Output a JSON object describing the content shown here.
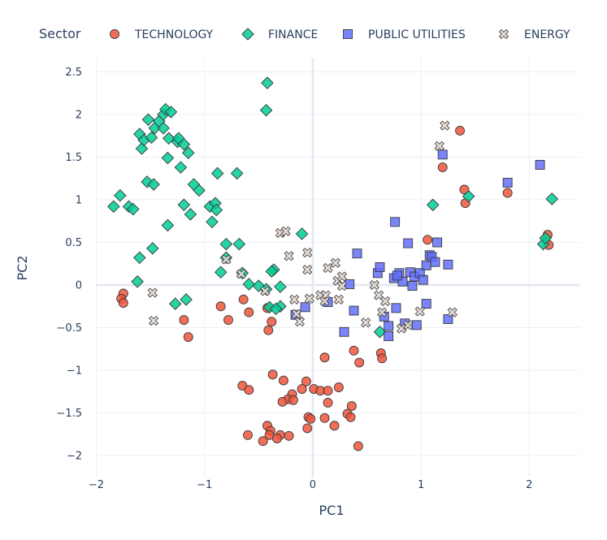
{
  "chart_data": {
    "type": "scatter",
    "title": "",
    "xlabel": "PC1",
    "ylabel": "PC2",
    "xlim": [
      -2.1,
      2.5
    ],
    "ylim": [
      -2.2,
      2.65
    ],
    "xticks": [
      -2,
      -1,
      0,
      1,
      2
    ],
    "xtick_labels": [
      "−2",
      "−1",
      "0",
      "1",
      "2"
    ],
    "yticks": [
      -2,
      -1.5,
      -1,
      -0.5,
      0,
      0.5,
      1,
      1.5,
      2,
      2.5
    ],
    "ytick_labels": [
      "−2",
      "−1.5",
      "−1",
      "−0.5",
      "0",
      "0.5",
      "1",
      "1.5",
      "2",
      "2.5"
    ],
    "grid": true,
    "legend_title": "Sector",
    "legend_position": "top",
    "series": [
      {
        "name": "TECHNOLOGY",
        "color": "#EF553B",
        "symbol": "circle",
        "points": [
          [
            -1.75,
            -0.1
          ],
          [
            -1.77,
            -0.16
          ],
          [
            -1.75,
            -0.21
          ],
          [
            -1.19,
            -0.41
          ],
          [
            -1.15,
            -0.61
          ],
          [
            -0.85,
            -0.25
          ],
          [
            -0.78,
            -0.41
          ],
          [
            -0.64,
            -0.17
          ],
          [
            -0.59,
            -0.32
          ],
          [
            -0.42,
            -0.27
          ],
          [
            -0.41,
            -0.53
          ],
          [
            -0.38,
            -0.43
          ],
          [
            -0.65,
            -1.18
          ],
          [
            -0.59,
            -1.23
          ],
          [
            -0.37,
            -1.05
          ],
          [
            -0.27,
            -1.12
          ],
          [
            -0.06,
            -1.13
          ],
          [
            -0.1,
            -1.22
          ],
          [
            -0.19,
            -1.28
          ],
          [
            -0.23,
            -1.34
          ],
          [
            -0.28,
            -1.37
          ],
          [
            -0.18,
            -1.35
          ],
          [
            0.01,
            -1.22
          ],
          [
            0.07,
            -1.24
          ],
          [
            0.14,
            -1.24
          ],
          [
            0.24,
            -1.2
          ],
          [
            0.14,
            -1.38
          ],
          [
            0.36,
            -1.42
          ],
          [
            0.32,
            -1.51
          ],
          [
            0.35,
            -1.55
          ],
          [
            -0.04,
            -1.55
          ],
          [
            -0.02,
            -1.57
          ],
          [
            0.11,
            -1.56
          ],
          [
            0.2,
            -1.65
          ],
          [
            -0.42,
            -1.65
          ],
          [
            -0.39,
            -1.71
          ],
          [
            -0.4,
            -1.76
          ],
          [
            -0.3,
            -1.76
          ],
          [
            -0.22,
            -1.77
          ],
          [
            -0.6,
            -1.76
          ],
          [
            -0.46,
            -1.83
          ],
          [
            -0.33,
            -1.8
          ],
          [
            -0.05,
            -1.68
          ],
          [
            0.42,
            -1.89
          ],
          [
            0.11,
            -0.85
          ],
          [
            0.38,
            -0.77
          ],
          [
            0.43,
            -0.91
          ],
          [
            0.63,
            -0.8
          ],
          [
            0.64,
            -0.86
          ],
          [
            1.06,
            0.53
          ],
          [
            1.2,
            1.38
          ],
          [
            1.36,
            1.81
          ],
          [
            1.4,
            1.12
          ],
          [
            1.41,
            0.96
          ],
          [
            1.8,
            1.08
          ],
          [
            2.17,
            0.59
          ],
          [
            2.18,
            0.47
          ]
        ]
      },
      {
        "name": "FINANCE",
        "color": "#00CC96",
        "symbol": "diamond",
        "points": [
          [
            -1.84,
            0.92
          ],
          [
            -1.78,
            1.05
          ],
          [
            -1.7,
            0.92
          ],
          [
            -1.66,
            0.89
          ],
          [
            -1.6,
            1.77
          ],
          [
            -1.58,
            1.6
          ],
          [
            -1.56,
            1.7
          ],
          [
            -1.52,
            1.94
          ],
          [
            -1.49,
            1.73
          ],
          [
            -1.46,
            1.84
          ],
          [
            -1.42,
            1.92
          ],
          [
            -1.38,
            2.0
          ],
          [
            -1.36,
            2.06
          ],
          [
            -1.31,
            2.03
          ],
          [
            -1.38,
            1.84
          ],
          [
            -1.33,
            1.72
          ],
          [
            -1.25,
            1.68
          ],
          [
            -1.24,
            1.72
          ],
          [
            -1.19,
            1.65
          ],
          [
            -1.15,
            1.55
          ],
          [
            -1.34,
            1.49
          ],
          [
            -1.22,
            1.38
          ],
          [
            -1.53,
            1.21
          ],
          [
            -1.47,
            1.18
          ],
          [
            -1.1,
            1.18
          ],
          [
            -1.05,
            1.11
          ],
          [
            -0.88,
            1.31
          ],
          [
            -0.7,
            1.31
          ],
          [
            -1.19,
            0.94
          ],
          [
            -0.95,
            0.92
          ],
          [
            -0.9,
            0.96
          ],
          [
            -0.89,
            0.88
          ],
          [
            -0.93,
            0.74
          ],
          [
            -1.13,
            0.83
          ],
          [
            -1.34,
            0.7
          ],
          [
            -1.48,
            0.43
          ],
          [
            -1.6,
            0.32
          ],
          [
            -1.62,
            0.04
          ],
          [
            -1.27,
            -0.22
          ],
          [
            -1.17,
            -0.17
          ],
          [
            -0.8,
            0.48
          ],
          [
            -0.68,
            0.48
          ],
          [
            -0.8,
            0.32
          ],
          [
            -0.85,
            0.15
          ],
          [
            -0.65,
            0.14
          ],
          [
            -0.59,
            0.01
          ],
          [
            -0.5,
            -0.01
          ],
          [
            -0.43,
            -0.05
          ],
          [
            -0.36,
            0.18
          ],
          [
            -0.38,
            0.16
          ],
          [
            -0.3,
            -0.02
          ],
          [
            -0.4,
            -0.26
          ],
          [
            -0.3,
            -0.25
          ],
          [
            -0.34,
            -0.28
          ],
          [
            -0.42,
            2.37
          ],
          [
            -0.43,
            2.05
          ],
          [
            -0.1,
            0.6
          ],
          [
            0.62,
            -0.55
          ],
          [
            1.11,
            0.94
          ],
          [
            1.44,
            1.04
          ],
          [
            2.13,
            0.48
          ],
          [
            2.15,
            0.55
          ],
          [
            2.21,
            1.01
          ]
        ]
      },
      {
        "name": "PUBLIC UTILITIES",
        "color": "#636EFA",
        "symbol": "square",
        "points": [
          [
            -0.16,
            -0.35
          ],
          [
            -0.07,
            -0.26
          ],
          [
            0.14,
            -0.2
          ],
          [
            0.29,
            -0.55
          ],
          [
            0.34,
            0.01
          ],
          [
            0.38,
            -0.3
          ],
          [
            0.41,
            0.37
          ],
          [
            0.6,
            0.14
          ],
          [
            0.62,
            0.21
          ],
          [
            0.66,
            -0.37
          ],
          [
            0.7,
            -0.48
          ],
          [
            0.7,
            -0.6
          ],
          [
            0.75,
            0.08
          ],
          [
            0.76,
            0.74
          ],
          [
            0.77,
            -0.27
          ],
          [
            0.8,
            0.14
          ],
          [
            0.83,
            0.04
          ],
          [
            0.85,
            -0.45
          ],
          [
            0.88,
            0.49
          ],
          [
            0.9,
            0.15
          ],
          [
            0.92,
            -0.01
          ],
          [
            0.94,
            0.1
          ],
          [
            0.96,
            -0.47
          ],
          [
            0.99,
            0.14
          ],
          [
            1.02,
            0.06
          ],
          [
            1.05,
            0.23
          ],
          [
            1.08,
            0.35
          ],
          [
            1.1,
            0.33
          ],
          [
            1.13,
            0.27
          ],
          [
            1.15,
            0.5
          ],
          [
            1.2,
            1.53
          ],
          [
            1.25,
            0.24
          ],
          [
            1.25,
            -0.4
          ],
          [
            1.8,
            1.2
          ],
          [
            2.1,
            1.41
          ],
          [
            1.05,
            -0.22
          ],
          [
            0.78,
            0.11
          ]
        ]
      },
      {
        "name": "ENERGY",
        "color": "#AB9A92",
        "symbol": "x",
        "points": [
          [
            -1.48,
            -0.09
          ],
          [
            -1.47,
            -0.42
          ],
          [
            -0.8,
            0.3
          ],
          [
            -0.66,
            0.13
          ],
          [
            -0.44,
            -0.07
          ],
          [
            -0.3,
            0.61
          ],
          [
            -0.25,
            0.63
          ],
          [
            -0.22,
            0.34
          ],
          [
            -0.17,
            -0.17
          ],
          [
            -0.15,
            -0.34
          ],
          [
            -0.12,
            -0.43
          ],
          [
            -0.05,
            0.38
          ],
          [
            -0.05,
            0.18
          ],
          [
            -0.03,
            -0.16
          ],
          [
            0.07,
            -0.12
          ],
          [
            0.12,
            -0.12
          ],
          [
            0.14,
            0.2
          ],
          [
            0.21,
            0.26
          ],
          [
            0.23,
            0.05
          ],
          [
            0.24,
            -0.17
          ],
          [
            0.27,
            0.1
          ],
          [
            0.27,
            -0.01
          ],
          [
            0.49,
            -0.44
          ],
          [
            0.57,
            0.0
          ],
          [
            0.61,
            -0.12
          ],
          [
            0.64,
            -0.32
          ],
          [
            0.67,
            -0.19
          ],
          [
            0.82,
            -0.51
          ],
          [
            0.88,
            -0.47
          ],
          [
            0.99,
            -0.31
          ],
          [
            1.17,
            1.63
          ],
          [
            1.22,
            1.87
          ],
          [
            1.29,
            -0.32
          ],
          [
            0.11,
            -0.19
          ]
        ]
      }
    ]
  }
}
